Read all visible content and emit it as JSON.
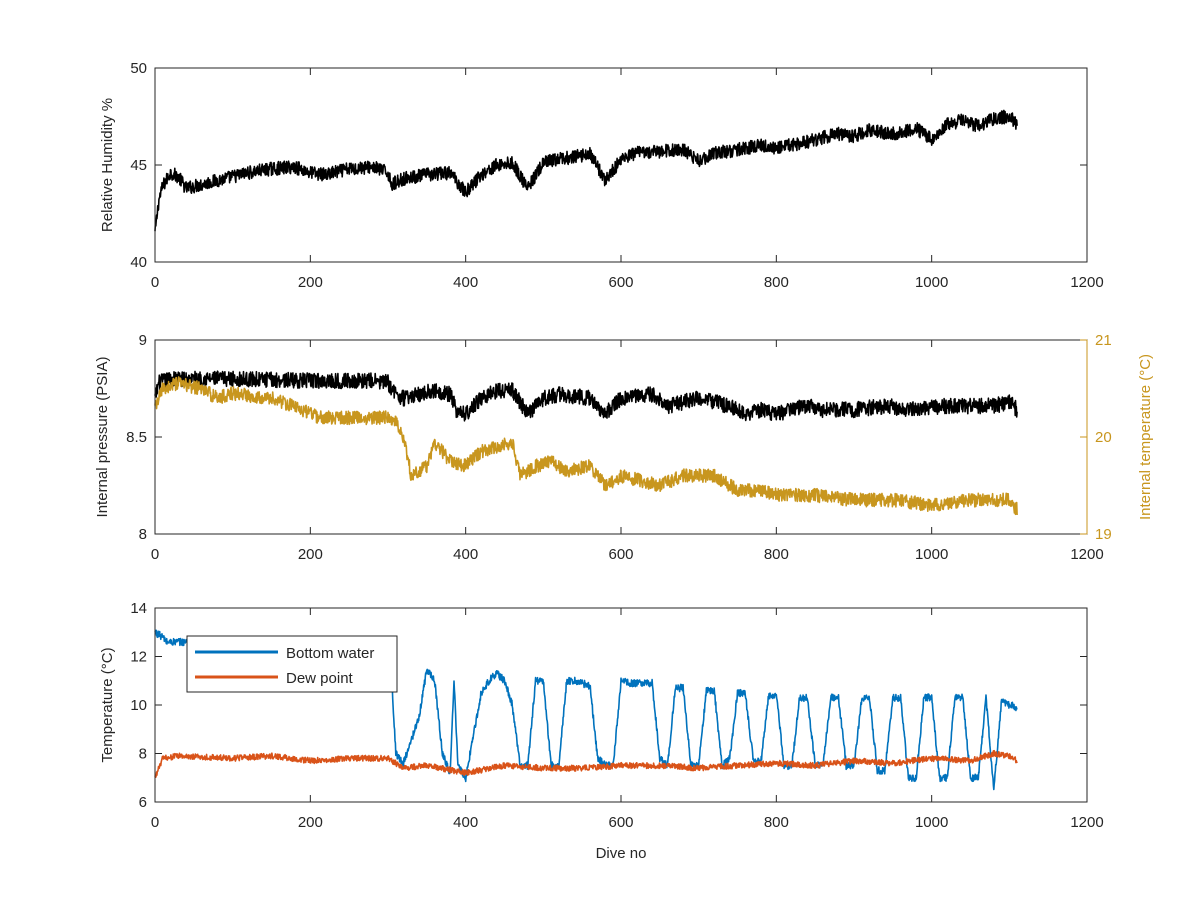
{
  "figure": {
    "colors": {
      "black_series": "#000000",
      "internal_temperature": "#C8961E",
      "bottom_water": "#0072BD",
      "dew_point": "#D95319",
      "axes": "#262626",
      "right_axis_text": "#C8961E"
    }
  },
  "chart_data": [
    {
      "type": "line",
      "xlabel": "",
      "ylabel": "Relative Humidity %",
      "xlim": [
        0,
        1200
      ],
      "ylim": [
        40,
        50
      ],
      "x_ticks": [
        "0",
        "200",
        "400",
        "600",
        "800",
        "1000",
        "1200"
      ],
      "y_ticks": [
        "40",
        "45",
        "50"
      ],
      "grid": false,
      "series": [
        {
          "color": "#000000",
          "x": [
            0,
            5,
            10,
            20,
            30,
            40,
            60,
            80,
            100,
            120,
            150,
            180,
            200,
            220,
            250,
            280,
            300,
            305,
            320,
            350,
            380,
            400,
            420,
            440,
            460,
            480,
            500,
            520,
            540,
            560,
            580,
            600,
            620,
            650,
            680,
            700,
            720,
            750,
            780,
            800,
            830,
            860,
            880,
            900,
            920,
            950,
            980,
            1000,
            1020,
            1040,
            1060,
            1080,
            1100,
            1110
          ],
          "y": [
            41.5,
            43.2,
            43.9,
            44.6,
            44.4,
            43.8,
            44.0,
            44.2,
            44.4,
            44.6,
            44.8,
            44.9,
            44.6,
            44.5,
            44.8,
            44.9,
            44.6,
            44.0,
            44.3,
            44.5,
            44.6,
            43.6,
            44.5,
            45.0,
            45.1,
            43.8,
            45.1,
            45.3,
            45.4,
            45.6,
            44.2,
            45.3,
            45.6,
            45.7,
            45.8,
            45.2,
            45.6,
            45.8,
            46.0,
            45.9,
            46.1,
            46.4,
            46.6,
            46.5,
            46.8,
            46.6,
            46.9,
            46.3,
            47.1,
            47.3,
            47.0,
            47.4,
            47.5,
            47.1
          ],
          "jitter": 0.35
        }
      ]
    },
    {
      "type": "line",
      "xlabel": "",
      "ylabel": "Internal pressure (PSIA)",
      "ylabel_right": "Internal temperature (°C)",
      "xlim": [
        0,
        1200
      ],
      "ylim": [
        8,
        9
      ],
      "ylim_right": [
        19,
        21
      ],
      "x_ticks": [
        "0",
        "200",
        "400",
        "600",
        "800",
        "1000",
        "1200"
      ],
      "y_ticks": [
        "8",
        "8.5",
        "9"
      ],
      "y_ticks_right": [
        "19",
        "20",
        "21"
      ],
      "grid": false,
      "series": [
        {
          "axis": "left",
          "color": "#000000",
          "x": [
            0,
            5,
            20,
            100,
            200,
            280,
            300,
            310,
            320,
            340,
            360,
            380,
            390,
            400,
            420,
            440,
            460,
            480,
            500,
            520,
            560,
            580,
            600,
            640,
            660,
            700,
            720,
            740,
            760,
            780,
            800,
            840,
            860,
            900,
            940,
            980,
            1020,
            1060,
            1080,
            1100,
            1110
          ],
          "y": [
            8.7,
            8.78,
            8.8,
            8.8,
            8.79,
            8.79,
            8.78,
            8.72,
            8.7,
            8.72,
            8.74,
            8.72,
            8.62,
            8.62,
            8.7,
            8.74,
            8.74,
            8.62,
            8.7,
            8.72,
            8.7,
            8.62,
            8.7,
            8.72,
            8.66,
            8.7,
            8.68,
            8.66,
            8.62,
            8.64,
            8.62,
            8.66,
            8.64,
            8.64,
            8.66,
            8.64,
            8.66,
            8.66,
            8.66,
            8.68,
            8.64
          ],
          "jitter": 0.04
        },
        {
          "axis": "right",
          "color": "#C8961E",
          "x": [
            0,
            10,
            30,
            60,
            80,
            100,
            150,
            200,
            210,
            250,
            300,
            310,
            320,
            330,
            350,
            360,
            380,
            400,
            420,
            440,
            460,
            470,
            490,
            510,
            530,
            560,
            580,
            600,
            650,
            680,
            700,
            720,
            750,
            780,
            800,
            850,
            900,
            950,
            1000,
            1050,
            1100,
            1110
          ],
          "y": [
            20.3,
            20.5,
            20.55,
            20.5,
            20.4,
            20.45,
            20.4,
            20.25,
            20.2,
            20.2,
            20.2,
            20.15,
            20.0,
            19.6,
            19.7,
            19.95,
            19.75,
            19.7,
            19.85,
            19.9,
            19.95,
            19.6,
            19.7,
            19.75,
            19.65,
            19.7,
            19.5,
            19.6,
            19.5,
            19.6,
            19.6,
            19.6,
            19.45,
            19.45,
            19.4,
            19.4,
            19.35,
            19.35,
            19.3,
            19.35,
            19.35,
            19.25
          ],
          "jitter": 0.07
        }
      ]
    },
    {
      "type": "line",
      "xlabel": "Dive no",
      "ylabel": "Temperature (°C)",
      "xlim": [
        0,
        1200
      ],
      "ylim": [
        6,
        14
      ],
      "x_ticks": [
        "0",
        "200",
        "400",
        "600",
        "800",
        "1000",
        "1200"
      ],
      "y_ticks": [
        "6",
        "8",
        "10",
        "12",
        "14"
      ],
      "grid": false,
      "legend": "top-left",
      "series": [
        {
          "name": "Bottom water",
          "color": "#0072BD",
          "x": [
            0,
            10,
            15,
            40,
            300,
            305,
            310,
            320,
            340,
            350,
            360,
            370,
            380,
            385,
            390,
            400,
            420,
            430,
            440,
            450,
            460,
            470,
            480,
            490,
            500,
            510,
            520,
            530,
            540,
            560,
            570,
            580,
            590,
            600,
            610,
            620,
            640,
            650,
            660,
            670,
            680,
            690,
            700,
            710,
            720,
            730,
            740,
            750,
            760,
            770,
            780,
            790,
            800,
            810,
            820,
            830,
            840,
            850,
            860,
            870,
            880,
            890,
            900,
            910,
            920,
            930,
            940,
            950,
            960,
            970,
            980,
            990,
            1000,
            1010,
            1020,
            1030,
            1040,
            1050,
            1060,
            1070,
            1080,
            1090,
            1100,
            1110
          ],
          "y": [
            13,
            12.8,
            12.6,
            12.6,
            12.6,
            11.0,
            8.0,
            7.6,
            9.5,
            11.5,
            11.0,
            8.0,
            7.2,
            11.0,
            7.5,
            7.0,
            10.5,
            11.0,
            11.3,
            11.0,
            10.0,
            7.5,
            7.5,
            11.0,
            11.0,
            7.5,
            7.5,
            11.0,
            11.0,
            10.8,
            7.8,
            7.5,
            7.5,
            11.0,
            10.9,
            10.9,
            10.9,
            7.8,
            7.5,
            10.7,
            10.7,
            7.5,
            7.5,
            10.6,
            10.6,
            7.5,
            7.8,
            10.5,
            10.5,
            7.8,
            7.6,
            10.4,
            10.4,
            7.5,
            7.5,
            10.3,
            10.3,
            7.5,
            7.5,
            10.3,
            10.3,
            7.5,
            7.5,
            10.3,
            10.3,
            7.3,
            7.3,
            10.3,
            10.3,
            7.0,
            7.0,
            10.3,
            10.3,
            7.0,
            7.0,
            10.3,
            10.3,
            7.0,
            7.0,
            10.3,
            6.5,
            10.2,
            10.0,
            9.9
          ],
          "jitter": 0.15
        },
        {
          "name": "Dew point",
          "color": "#D95319",
          "x": [
            0,
            10,
            30,
            100,
            150,
            200,
            250,
            300,
            320,
            350,
            400,
            450,
            500,
            550,
            600,
            650,
            700,
            750,
            800,
            850,
            900,
            950,
            1000,
            1050,
            1080,
            1100,
            1110
          ],
          "y": [
            7.0,
            7.8,
            7.9,
            7.8,
            7.9,
            7.7,
            7.8,
            7.8,
            7.4,
            7.5,
            7.2,
            7.5,
            7.4,
            7.4,
            7.5,
            7.5,
            7.4,
            7.5,
            7.6,
            7.5,
            7.7,
            7.6,
            7.8,
            7.7,
            8.0,
            7.9,
            7.7
          ],
          "jitter": 0.12
        }
      ]
    }
  ]
}
